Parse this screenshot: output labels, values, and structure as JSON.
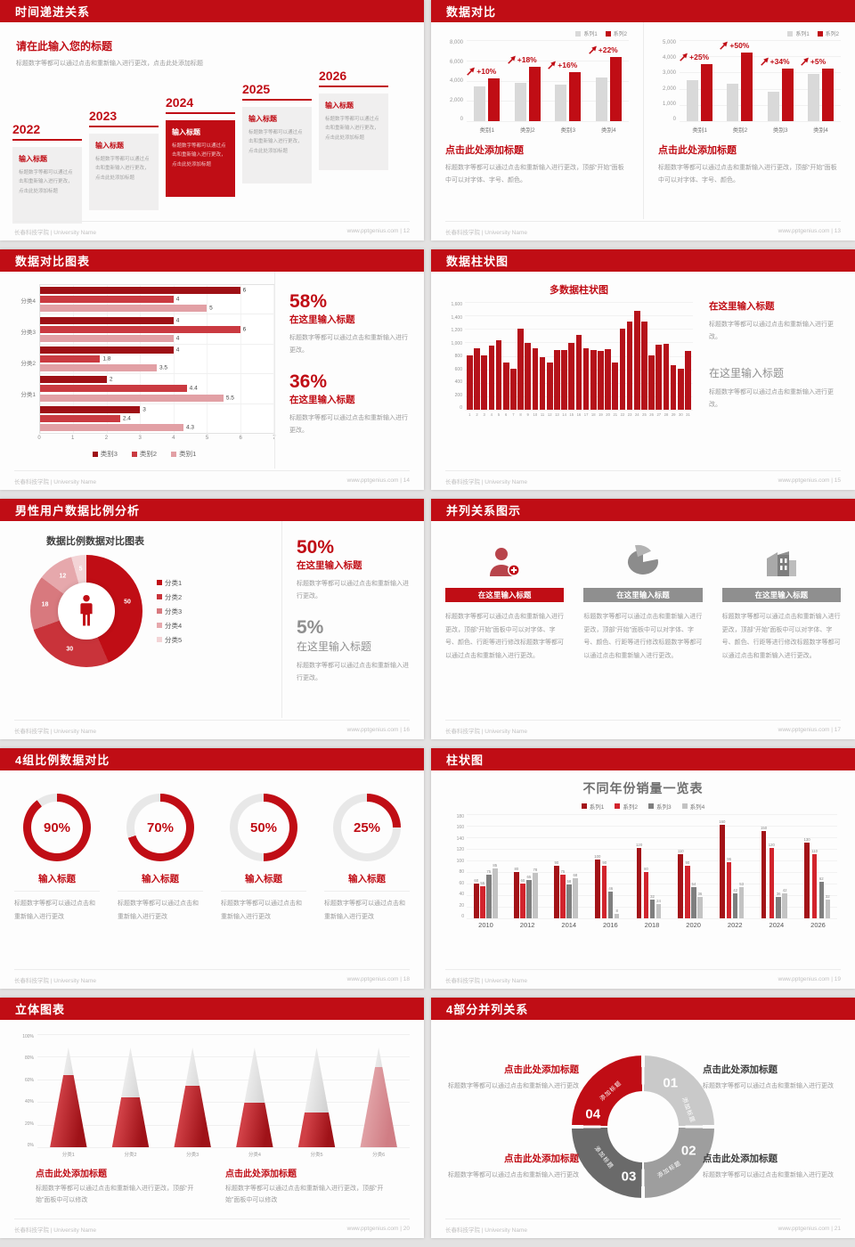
{
  "footer": {
    "left": "长春科技学院 | University Name"
  },
  "palette": {
    "primary": "#c00d15",
    "bar_gray": "#d9d9d9",
    "hseries": [
      "#9e1016",
      "#ca3a41",
      "#e2a0a5"
    ],
    "donut": [
      "#c00d15",
      "#c9333a",
      "#d8797e",
      "#e6a8ac",
      "#f3d4d6"
    ],
    "grouped": [
      "#a31318",
      "#d2242d",
      "#7f7f7f",
      "#c3c3c3"
    ],
    "ring_track": "#e8e8e8"
  },
  "slides": [
    {
      "title": "时间递进关系",
      "footer_right": "www.pptgenius.com | 12",
      "intro_title": "请在此输入您的标题",
      "intro_body": "标题数字等都可以通过点击和重新输入进行更改，点击此处添加标题",
      "years": [
        "2022",
        "2023",
        "2024",
        "2025",
        "2026"
      ],
      "highlight": 2,
      "item_title": "输入标题",
      "item_body": "标题数字等都可以通过点击和重新输入进行更改，点击此处添加标题"
    },
    {
      "title": "数据对比",
      "footer_right": "www.pptgenius.com | 13",
      "legend": [
        "系列1",
        "系列2"
      ],
      "charts": [
        {
          "type": "bar",
          "ymax": 8000,
          "yticks": [
            "8,000",
            "6,000",
            "4,000",
            "2,000",
            "0"
          ],
          "categories": [
            "类别1",
            "类别2",
            "类别3",
            "类别4"
          ],
          "series1": [
            3400,
            3700,
            3600,
            4300
          ],
          "series2": [
            4200,
            5300,
            4800,
            6300
          ],
          "growth": [
            "+10%",
            "+18%",
            "+16%",
            "+22%"
          ]
        },
        {
          "type": "bar",
          "ymax": 5000,
          "yticks": [
            "5,000",
            "4,000",
            "3,000",
            "2,000",
            "1,000",
            "0"
          ],
          "categories": [
            "类别1",
            "类别2",
            "类别3",
            "类别4"
          ],
          "series1": [
            2500,
            2300,
            1800,
            2900
          ],
          "series2": [
            3500,
            4200,
            3200,
            3200
          ],
          "growth": [
            "+25%",
            "+50%",
            "+34%",
            "+5%"
          ]
        }
      ],
      "block_title": "点击此处添加标题",
      "block_body": "标题数字等都可以通过点击和重新输入进行更改，顶部“开始”面板中可以对字体、字号、颜色。"
    },
    {
      "title": "数据对比图表",
      "footer_right": "www.pptgenius.com | 14",
      "chart": {
        "type": "bar",
        "orientation": "horizontal",
        "xmax": 7,
        "xticks": [
          "0",
          "1",
          "2",
          "3",
          "4",
          "5",
          "6",
          "7"
        ],
        "legend": [
          "类别3",
          "类别2",
          "类别1"
        ],
        "groups": [
          {
            "label": "分类4",
            "values": [
              6,
              4,
              5
            ]
          },
          {
            "label": "分类3",
            "values": [
              4,
              6,
              4
            ]
          },
          {
            "label": "分类2",
            "values": [
              4,
              1.8,
              3.5
            ]
          },
          {
            "label": "分类1",
            "values": [
              2,
              4.4,
              5.5
            ]
          },
          {
            "label": "",
            "values": [
              3,
              2.4,
              4.3
            ]
          }
        ]
      },
      "stats": [
        {
          "value": "58%",
          "title": "在这里输入标题",
          "body": "标题数字等都可以通过点击和重新输入进行更改。"
        },
        {
          "value": "36%",
          "title": "在这里输入标题",
          "body": "标题数字等都可以通过点击和重新输入进行更改。"
        }
      ]
    },
    {
      "title": "数据柱状图",
      "footer_right": "www.pptgenius.com | 15",
      "chart": {
        "type": "bar",
        "title": "多数据柱状图",
        "ymax": 1600,
        "yticks": [
          "1,600",
          "1,400",
          "1,200",
          "1,000",
          "800",
          "600",
          "400",
          "200",
          "0"
        ],
        "values": [
          800,
          900,
          800,
          950,
          1020,
          700,
          600,
          1200,
          980,
          900,
          780,
          700,
          880,
          880,
          990,
          1100,
          900,
          880,
          870,
          890,
          700,
          1200,
          1300,
          1450,
          1300,
          800,
          960,
          970,
          660,
          600,
          870
        ]
      },
      "stats": [
        {
          "title": "在这里输入标题",
          "body": "标题数字等都可以通过点击和重新输入进行更改。",
          "style": "red"
        },
        {
          "title": "在这里输入标题",
          "body": "标题数字等都可以通过点击和重新输入进行更改。",
          "style": "gray"
        }
      ]
    },
    {
      "title": "男性用户数据比例分析",
      "footer_right": "www.pptgenius.com | 16",
      "chart": {
        "type": "pie",
        "title": "数据比例数据对比图表",
        "values": [
          50,
          30,
          18,
          12,
          5
        ],
        "labels": [
          "50",
          "30",
          "18",
          "12",
          "5"
        ],
        "legend": [
          "分类1",
          "分类2",
          "分类3",
          "分类4",
          "分类5"
        ]
      },
      "stats": [
        {
          "value": "50%",
          "title": "在这里输入标题",
          "body": "标题数字等都可以通过点击和重新输入进行更改。",
          "style": "red"
        },
        {
          "value": "5%",
          "title": "在这里输入标题",
          "body": "标题数字等都可以通过点击和重新输入进行更改。",
          "style": "gray"
        }
      ]
    },
    {
      "title": "并列关系图示",
      "footer_right": "www.pptgenius.com | 17",
      "header": "在这里输入标题",
      "body": "标题数字等都可以通过点击和重新输入进行更改，顶部“开始”面板中可以对字体、字号、颜色、行距等进行修改标题数字等都可以通过点击和重新输入进行更改。",
      "columns": [
        {
          "icon": "nurse-add-icon",
          "style": "red"
        },
        {
          "icon": "pie-chart-3d-icon",
          "style": "gray"
        },
        {
          "icon": "building-icon",
          "style": "gray"
        }
      ]
    },
    {
      "title": "4组比例数据对比",
      "footer_right": "www.pptgenius.com | 18",
      "rings": [
        {
          "percent": 90,
          "label": "90%"
        },
        {
          "percent": 70,
          "label": "70%"
        },
        {
          "percent": 50,
          "label": "50%"
        },
        {
          "percent": 25,
          "label": "25%"
        }
      ],
      "item_title": "输入标题",
      "item_body": "标题数字等都可以通过点击和重新输入进行更改"
    },
    {
      "title": "柱状图",
      "footer_right": "www.pptgenius.com | 19",
      "chart": {
        "type": "bar",
        "title": "不同年份销量一览表",
        "ymax": 180,
        "yticks": [
          "180",
          "160",
          "140",
          "120",
          "100",
          "80",
          "60",
          "40",
          "20",
          "0"
        ],
        "categories": [
          "2010",
          "2012",
          "2014",
          "2016",
          "2018",
          "2020",
          "2022",
          "2024",
          "2026"
        ],
        "series": [
          {
            "name": "系列1",
            "values": [
              60,
              80,
              90,
              100,
              120,
              110,
              160,
              150,
              130
            ]
          },
          {
            "name": "系列2",
            "values": [
              55,
              60,
              75,
              90,
              80,
              90,
              96,
              120,
              110
            ]
          },
          {
            "name": "系列3",
            "values": [
              75,
              65,
              58,
              46,
              32,
              54,
              42,
              36,
              62
            ]
          },
          {
            "name": "系列4",
            "values": [
              85,
              78,
              68,
              8,
              24,
              36,
              53,
              42,
              32
            ]
          }
        ]
      }
    },
    {
      "title": "立体图表",
      "footer_right": "www.pptgenius.com | 20",
      "chart": {
        "type": "bar",
        "shape": "cone",
        "ymax": 100,
        "yticks": [
          "100%",
          "80%",
          "60%",
          "40%",
          "20%",
          "0%"
        ],
        "categories": [
          "分类1",
          "分类2",
          "分类3",
          "分类4",
          "分类5",
          "分类6"
        ],
        "fills": [
          72,
          50,
          62,
          45,
          35,
          80
        ],
        "light_index": 5
      },
      "blocks": [
        {
          "title": "点击此处添加标题",
          "body": "标题数字等都可以通过点击和重新输入进行更改，顶部“开始”面板中可以修改"
        },
        {
          "title": "点击此处添加标题",
          "body": "标题数字等都可以通过点击和重新输入进行更改，顶部“开始”面板中可以修改"
        }
      ]
    },
    {
      "title": "4部分并列关系",
      "footer_right": "www.pptgenius.com | 21",
      "segments": [
        {
          "num": "01",
          "label": "添加标题",
          "color": "#c9c9c9"
        },
        {
          "num": "02",
          "label": "添加标题",
          "color": "#9e9e9e"
        },
        {
          "num": "03",
          "label": "添加标题",
          "color": "#6a6a6a"
        },
        {
          "num": "04",
          "label": "添加标题",
          "color": "#c00d15"
        }
      ],
      "blocks": [
        {
          "title": "点击此处添加标题",
          "body": "标题数字等都可以通过点击和重新输入进行更改"
        },
        {
          "title": "点击此处添加标题",
          "body": "标题数字等都可以通过点击和重新输入进行更改"
        },
        {
          "title": "点击此处添加标题",
          "body": "标题数字等都可以通过点击和重新输入进行更改"
        },
        {
          "title": "点击此处添加标题",
          "body": "标题数字等都可以通过点击和重新输入进行更改"
        }
      ]
    }
  ]
}
